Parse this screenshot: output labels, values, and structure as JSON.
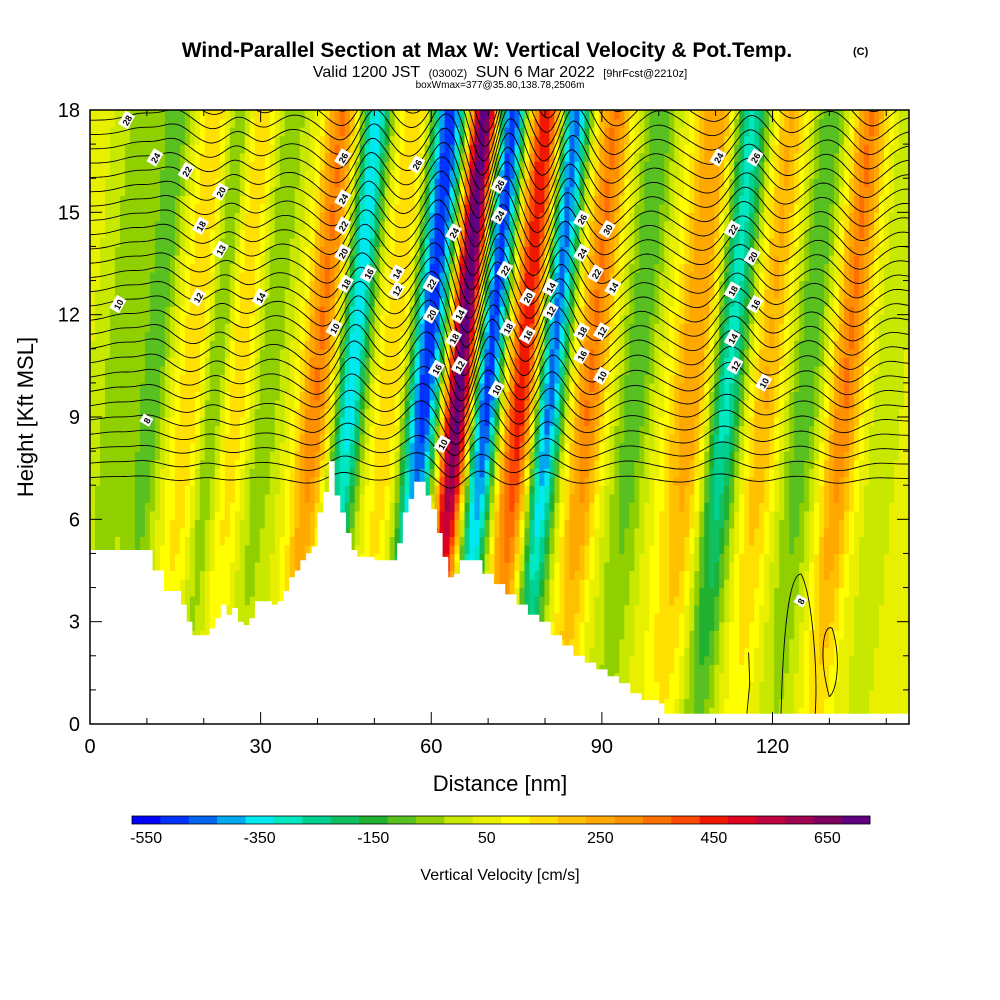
{
  "chart_data": {
    "type": "heatmap",
    "title": {
      "main": "Wind-Parallel Section at Max W: Vertical Velocity & Pot.Temp.",
      "copyright": "(C)",
      "valid_prefix": "Valid 1200 JST",
      "valid_utc": "(0300Z)",
      "valid_date": "SUN 6 Mar 2022",
      "forecast": "[9hrFcst@2210z]",
      "box_info": "boxWmax=377@35.80,138.78,2506m"
    },
    "xlabel": "Distance [nm]",
    "ylabel": "Height [Kft MSL]",
    "xlim": [
      0,
      144
    ],
    "ylim": [
      0,
      18
    ],
    "x_ticks": [
      "0",
      "30",
      "60",
      "90",
      "120"
    ],
    "y_ticks": [
      "0",
      "3",
      "6",
      "9",
      "12",
      "15",
      "18"
    ],
    "colorbar": {
      "label": "Vertical Velocity [cm/s]",
      "ticks": [
        "-550",
        "-350",
        "-150",
        "50",
        "250",
        "450",
        "650"
      ],
      "bins": [
        {
          "value": -550,
          "color": "#0000ff"
        },
        {
          "value": -500,
          "color": "#0033ff"
        },
        {
          "value": -450,
          "color": "#0066f0"
        },
        {
          "value": -400,
          "color": "#00a8f0"
        },
        {
          "value": -350,
          "color": "#00e8f0"
        },
        {
          "value": -300,
          "color": "#00e8c0"
        },
        {
          "value": -250,
          "color": "#00d090"
        },
        {
          "value": -200,
          "color": "#10c060"
        },
        {
          "value": -150,
          "color": "#22b030"
        },
        {
          "value": -100,
          "color": "#58c020"
        },
        {
          "value": -50,
          "color": "#90d000"
        },
        {
          "value": 0,
          "color": "#c8e800"
        },
        {
          "value": 50,
          "color": "#e8f000"
        },
        {
          "value": 100,
          "color": "#ffff00"
        },
        {
          "value": 150,
          "color": "#ffe000"
        },
        {
          "value": 200,
          "color": "#ffc000"
        },
        {
          "value": 250,
          "color": "#ffa800"
        },
        {
          "value": 300,
          "color": "#ff9000"
        },
        {
          "value": 350,
          "color": "#ff7000"
        },
        {
          "value": 400,
          "color": "#ff4800"
        },
        {
          "value": 450,
          "color": "#f01800"
        },
        {
          "value": 500,
          "color": "#e00020"
        },
        {
          "value": 550,
          "color": "#c00040"
        },
        {
          "value": 600,
          "color": "#a00050"
        },
        {
          "value": 650,
          "color": "#800060"
        },
        {
          "value": 700,
          "color": "#600080"
        }
      ]
    },
    "terrain": [
      [
        0,
        5.1
      ],
      [
        3,
        5.1
      ],
      [
        6,
        5.1
      ],
      [
        9,
        5.1
      ],
      [
        11,
        4.5
      ],
      [
        13,
        3.9
      ],
      [
        15,
        3.9
      ],
      [
        16,
        3.5
      ],
      [
        17,
        3.0
      ],
      [
        18,
        2.6
      ],
      [
        19,
        2.6
      ],
      [
        20,
        2.6
      ],
      [
        21,
        2.8
      ],
      [
        22,
        3.1
      ],
      [
        23,
        3.5
      ],
      [
        24,
        3.2
      ],
      [
        25,
        3.4
      ],
      [
        26,
        3.0
      ],
      [
        27,
        2.9
      ],
      [
        28,
        3.1
      ],
      [
        29,
        3.6
      ],
      [
        30,
        3.6
      ],
      [
        31,
        3.6
      ],
      [
        32,
        3.5
      ],
      [
        33,
        3.6
      ],
      [
        34,
        3.9
      ],
      [
        35,
        4.3
      ],
      [
        36,
        4.5
      ],
      [
        37,
        4.8
      ],
      [
        38,
        5.0
      ],
      [
        39,
        5.2
      ],
      [
        40,
        6.2
      ],
      [
        41,
        6.8
      ],
      [
        42,
        7.7
      ],
      [
        43,
        6.7
      ],
      [
        44,
        6.2
      ],
      [
        45,
        5.6
      ],
      [
        46,
        5.1
      ],
      [
        47,
        4.9
      ],
      [
        50,
        4.8
      ],
      [
        52,
        4.8
      ],
      [
        54,
        5.3
      ],
      [
        55,
        6.2
      ],
      [
        56,
        6.6
      ],
      [
        57,
        7.1
      ],
      [
        58,
        7.1
      ],
      [
        59,
        6.7
      ],
      [
        60,
        6.3
      ],
      [
        61,
        5.6
      ],
      [
        62,
        4.9
      ],
      [
        63,
        4.3
      ],
      [
        64,
        4.4
      ],
      [
        65,
        4.8
      ],
      [
        67,
        4.8
      ],
      [
        69,
        4.4
      ],
      [
        71,
        4.1
      ],
      [
        73,
        3.8
      ],
      [
        75,
        3.5
      ],
      [
        77,
        3.2
      ],
      [
        79,
        3.0
      ],
      [
        81,
        2.6
      ],
      [
        83,
        2.3
      ],
      [
        85,
        2.0
      ],
      [
        87,
        1.8
      ],
      [
        89,
        1.6
      ],
      [
        91,
        1.4
      ],
      [
        93,
        1.2
      ],
      [
        95,
        0.9
      ],
      [
        97,
        0.7
      ],
      [
        100,
        0.6
      ],
      [
        101,
        0.3
      ],
      [
        144,
        0.3
      ]
    ],
    "w_features": [
      {
        "x": 5,
        "w": -100,
        "halfwidth": 3
      },
      {
        "x": 11,
        "w": -150,
        "halfwidth": 2.5
      },
      {
        "x": 18,
        "w": 150,
        "halfwidth": 3
      },
      {
        "x": 22,
        "w": -150,
        "halfwidth": 2.5
      },
      {
        "x": 26,
        "w": 150,
        "halfwidth": 3
      },
      {
        "x": 31,
        "w": -100,
        "halfwidth": 3
      },
      {
        "x": 40,
        "w": 300,
        "halfwidth": 3
      },
      {
        "x": 46,
        "w": -400,
        "halfwidth": 2.5
      },
      {
        "x": 53,
        "w": 150,
        "halfwidth": 3
      },
      {
        "x": 59,
        "w": -550,
        "halfwidth": 3
      },
      {
        "x": 65,
        "w": 700,
        "halfwidth": 2.5
      },
      {
        "x": 70,
        "w": -550,
        "halfwidth": 2.5
      },
      {
        "x": 76,
        "w": 450,
        "halfwidth": 3
      },
      {
        "x": 81,
        "w": -500,
        "halfwidth": 2.5
      },
      {
        "x": 88,
        "w": 300,
        "halfwidth": 3
      },
      {
        "x": 96,
        "w": -150,
        "halfwidth": 3
      },
      {
        "x": 106,
        "w": 250,
        "halfwidth": 4
      },
      {
        "x": 112,
        "w": -350,
        "halfwidth": 3
      },
      {
        "x": 119,
        "w": 200,
        "halfwidth": 3
      },
      {
        "x": 126,
        "w": -150,
        "halfwidth": 3
      },
      {
        "x": 133,
        "w": 300,
        "halfwidth": 3
      },
      {
        "x": 140,
        "w": -50,
        "halfwidth": 2
      }
    ],
    "theta_contours": [
      {
        "label": "8",
        "label_x": 10,
        "label_y": 8.9
      },
      {
        "label": "10",
        "label_x": 5,
        "label_y": 12.3
      },
      {
        "label": "12",
        "label_x": 19,
        "label_y": 12.5
      },
      {
        "label": "13",
        "label_x": 23,
        "label_y": 13.9
      },
      {
        "label": "14",
        "label_x": 30,
        "label_y": 12.5
      },
      {
        "label": "18",
        "label_x": 19.5,
        "label_y": 14.6
      },
      {
        "label": "20",
        "label_x": 23,
        "label_y": 15.6
      },
      {
        "label": "22",
        "label_x": 17,
        "label_y": 16.2
      },
      {
        "label": "24",
        "label_x": 11.5,
        "label_y": 16.6
      },
      {
        "label": "28",
        "label_x": 6.5,
        "label_y": 17.7
      },
      {
        "label": "26",
        "label_x": 44.5,
        "label_y": 16.6
      },
      {
        "label": "24",
        "label_x": 44.5,
        "label_y": 15.4
      },
      {
        "label": "22",
        "label_x": 44.5,
        "label_y": 14.6
      },
      {
        "label": "20",
        "label_x": 44.5,
        "label_y": 13.8
      },
      {
        "label": "18",
        "label_x": 45,
        "label_y": 12.9
      },
      {
        "label": "16",
        "label_x": 49,
        "label_y": 13.2
      },
      {
        "label": "14",
        "label_x": 54,
        "label_y": 13.2
      },
      {
        "label": "12",
        "label_x": 54,
        "label_y": 12.7
      },
      {
        "label": "10",
        "label_x": 43,
        "label_y": 11.6
      },
      {
        "label": "26",
        "label_x": 57.5,
        "label_y": 16.4
      },
      {
        "label": "24",
        "label_x": 64,
        "label_y": 14.4
      },
      {
        "label": "22",
        "label_x": 60,
        "label_y": 12.9
      },
      {
        "label": "20",
        "label_x": 60,
        "label_y": 12.0
      },
      {
        "label": "18",
        "label_x": 64,
        "label_y": 11.3
      },
      {
        "label": "16",
        "label_x": 61,
        "label_y": 10.4
      },
      {
        "label": "14",
        "label_x": 65,
        "label_y": 12.0
      },
      {
        "label": "12",
        "label_x": 65,
        "label_y": 10.5
      },
      {
        "label": "10",
        "label_x": 62,
        "label_y": 8.2
      },
      {
        "label": "26",
        "label_x": 72,
        "label_y": 15.8
      },
      {
        "label": "24",
        "label_x": 72,
        "label_y": 14.9
      },
      {
        "label": "22",
        "label_x": 73,
        "label_y": 13.3
      },
      {
        "label": "18",
        "label_x": 73.5,
        "label_y": 11.6
      },
      {
        "label": "16",
        "label_x": 77,
        "label_y": 11.4
      },
      {
        "label": "20",
        "label_x": 77,
        "label_y": 12.5
      },
      {
        "label": "14",
        "label_x": 81,
        "label_y": 12.8
      },
      {
        "label": "12",
        "label_x": 81,
        "label_y": 12.1
      },
      {
        "label": "10",
        "label_x": 71.5,
        "label_y": 9.8
      },
      {
        "label": "26",
        "label_x": 86.5,
        "label_y": 14.8
      },
      {
        "label": "24",
        "label_x": 86.5,
        "label_y": 13.8
      },
      {
        "label": "22",
        "label_x": 89,
        "label_y": 13.2
      },
      {
        "label": "30",
        "label_x": 91,
        "label_y": 14.5
      },
      {
        "label": "14",
        "label_x": 92,
        "label_y": 12.8
      },
      {
        "label": "18",
        "label_x": 86.5,
        "label_y": 11.5
      },
      {
        "label": "16",
        "label_x": 86.5,
        "label_y": 10.8
      },
      {
        "label": "12",
        "label_x": 90,
        "label_y": 11.5
      },
      {
        "label": "10",
        "label_x": 90,
        "label_y": 10.2
      },
      {
        "label": "24",
        "label_x": 110.5,
        "label_y": 16.6
      },
      {
        "label": "26",
        "label_x": 117,
        "label_y": 16.6
      },
      {
        "label": "22",
        "label_x": 113,
        "label_y": 14.5
      },
      {
        "label": "20",
        "label_x": 116.5,
        "label_y": 13.7
      },
      {
        "label": "18",
        "label_x": 113,
        "label_y": 12.7
      },
      {
        "label": "16",
        "label_x": 117,
        "label_y": 12.3
      },
      {
        "label": "14",
        "label_x": 113,
        "label_y": 11.3
      },
      {
        "label": "12",
        "label_x": 113.5,
        "label_y": 10.5
      },
      {
        "label": "10",
        "label_x": 118.5,
        "label_y": 10.0
      },
      {
        "label": "8",
        "label_x": 125,
        "label_y": 3.6
      }
    ]
  }
}
